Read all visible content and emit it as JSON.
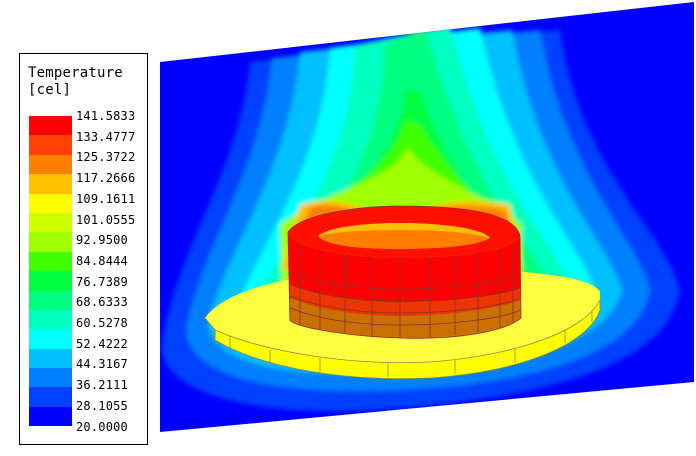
{
  "legend": {
    "title_line1": "Temperature",
    "title_line2": "[cel]",
    "values": [
      "141.5833",
      "133.4777",
      "125.3722",
      "117.2666",
      "109.1611",
      "101.0555",
      "92.9500",
      "84.8444",
      "76.7389",
      "68.6333",
      "60.5278",
      "52.4222",
      "44.3167",
      "36.2111",
      "28.1055",
      "20.0000"
    ],
    "colors": [
      "#ff0000",
      "#ff4000",
      "#ff8000",
      "#ffc000",
      "#ffff00",
      "#d0ff00",
      "#a0ff00",
      "#40ff00",
      "#00ff40",
      "#00ff80",
      "#00ffc0",
      "#00ffff",
      "#00c0ff",
      "#0080ff",
      "#0040ff",
      "#0000ff"
    ]
  }
}
